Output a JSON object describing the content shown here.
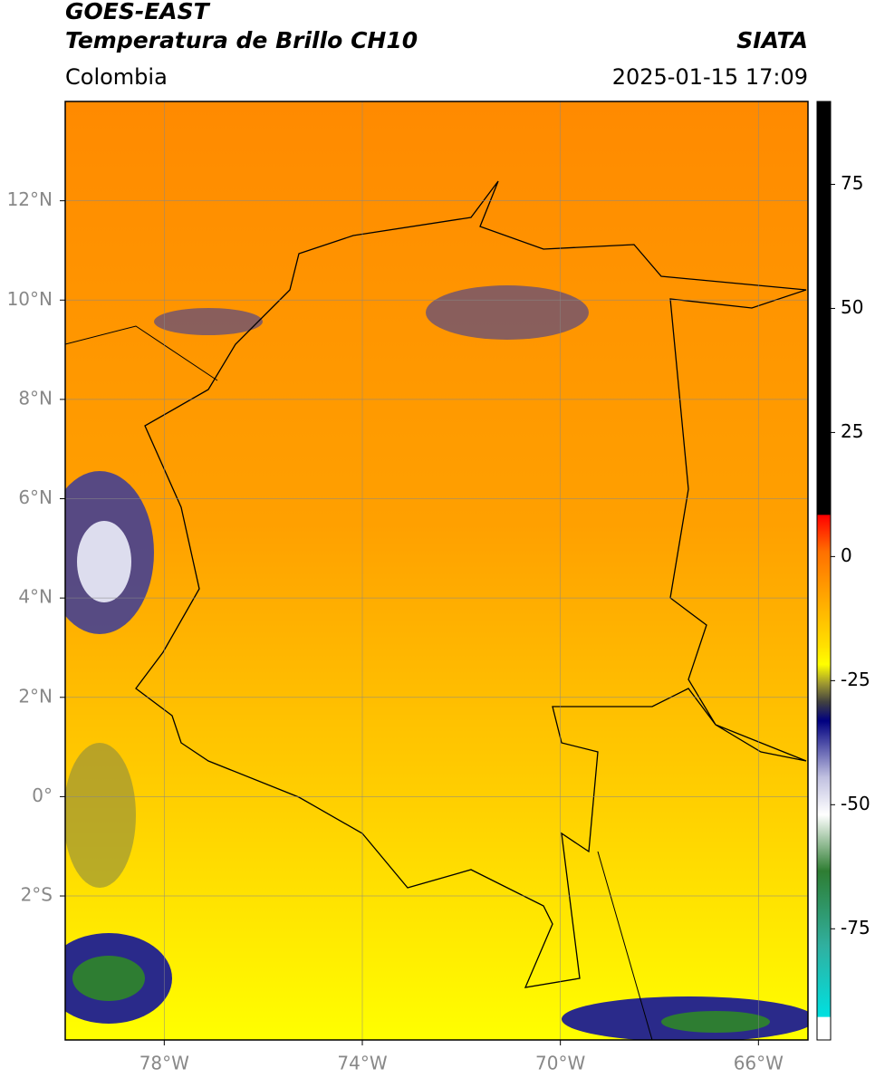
{
  "header": {
    "title": "GOES-EAST",
    "subtitle": "Temperatura de Brillo CH10",
    "source": "SIATA",
    "region": "Colombia",
    "datetime": "2025-01-15 17:09"
  },
  "map": {
    "xlim": [
      -80,
      -65
    ],
    "ylim": [
      -4.9,
      14
    ],
    "xticks": [
      {
        "value": -78,
        "label": "78°W"
      },
      {
        "value": -74,
        "label": "74°W"
      },
      {
        "value": -70,
        "label": "70°W"
      },
      {
        "value": -66,
        "label": "66°W"
      }
    ],
    "yticks": [
      {
        "value": 12,
        "label": "12°N"
      },
      {
        "value": 10,
        "label": "10°N"
      },
      {
        "value": 8,
        "label": "8°N"
      },
      {
        "value": 6,
        "label": "6°N"
      },
      {
        "value": 4,
        "label": "4°N"
      },
      {
        "value": 2,
        "label": "2°N"
      },
      {
        "value": 0,
        "label": "0°"
      },
      {
        "value": -2,
        "label": "2°S"
      }
    ],
    "grid": true
  },
  "colorbar": {
    "lim": [
      -97.4,
      91.7
    ],
    "ticks": [
      75,
      50,
      25,
      0,
      -25,
      -50,
      -75
    ]
  }
}
